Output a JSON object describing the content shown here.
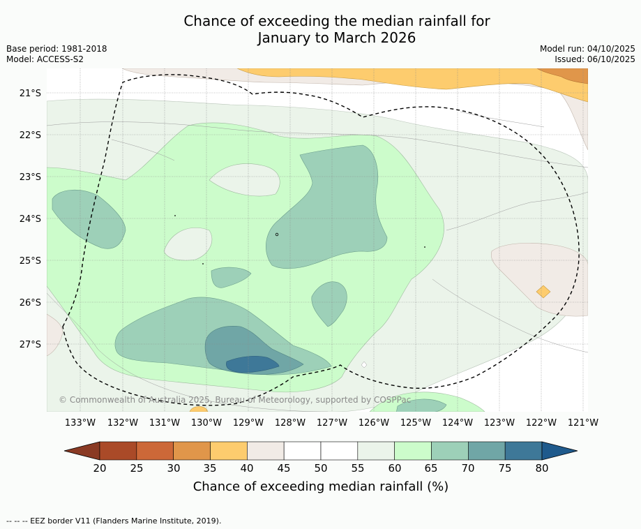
{
  "title_line1": "Chance of exceeding the median rainfall for",
  "title_line2": "January to March 2026",
  "meta_left": [
    "Base period: 1981-2018",
    "Model: ACCESS-S2"
  ],
  "meta_right": [
    "Model run: 04/10/2025",
    "Issued: 06/10/2025"
  ],
  "map": {
    "lat_labels": [
      "21°S",
      "22°S",
      "23°S",
      "24°S",
      "25°S",
      "26°S",
      "27°S"
    ],
    "lon_labels": [
      "133°W",
      "132°W",
      "131°W",
      "130°W",
      "129°W",
      "128°W",
      "127°W",
      "126°W",
      "125°W",
      "124°W",
      "123°W",
      "122°W",
      "121°W"
    ],
    "copyright": "© Commonwealth of Australia 2025, Bureau of Meteorology, supported by COSPPac",
    "background_color": "#ffffff"
  },
  "colorbar": {
    "tick_labels": [
      "20",
      "25",
      "30",
      "35",
      "40",
      "45",
      "50",
      "55",
      "60",
      "65",
      "70",
      "75",
      "80"
    ],
    "colors": [
      "#aa4a28",
      "#cc6838",
      "#e0964a",
      "#fdcc6e",
      "#f1ebe6",
      "#ffffff",
      "#ffffff",
      "#ebf4ea",
      "#ccfccb",
      "#9dd0b8",
      "#70a6a6",
      "#3e7898"
    ],
    "low_extend_color": "#8a3a24",
    "high_extend_color": "#1f5a8c",
    "label": "Chance of exceeding median rainfall (%)"
  },
  "footer": "-- -- -- EEZ border V11 (Flanders Marine Institute, 2019)."
}
